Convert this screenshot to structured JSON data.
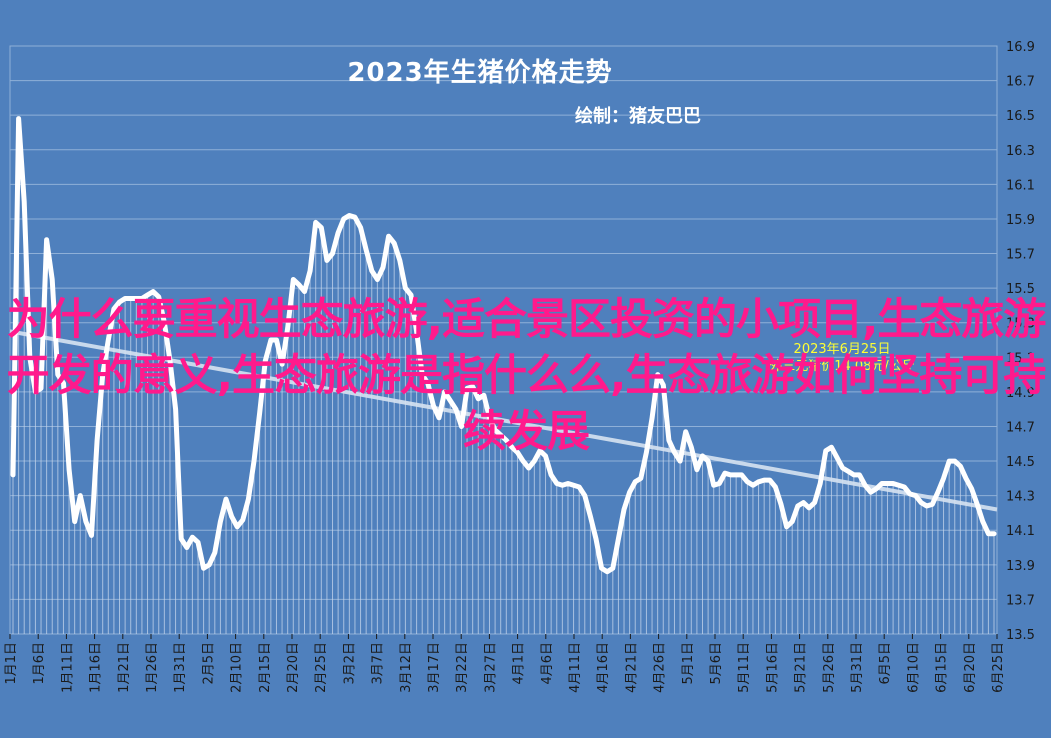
{
  "title": "2023年生猪价格走势",
  "subtitle": "绘制：猪友巴巴",
  "annotation": [
    "2023年6月25日",
    "外三元猪价14.08元/公斤"
  ],
  "overlay_text": "为什么要重视生态旅游,适合景区投资的小项目,生态旅游开发的意义,生态旅游是指什么么,生态旅游如何坚持可持续发展",
  "colors": {
    "background": "#4f80bd",
    "plot_border": "#8fb0d8",
    "grid": "#8fb0d8",
    "line": "#ffffff",
    "bars": "#c5d6ec",
    "trend": "#d6e2f1",
    "axis_text": "#1a1a1a",
    "annotation": "#ffff33",
    "overlay": "#ff1a8c"
  },
  "chart_data": {
    "type": "line",
    "title": "2023年生猪价格走势",
    "ylim": [
      13.5,
      16.9
    ],
    "yticks": [
      "16.9",
      "16.7",
      "16.5",
      "16.3",
      "16.1",
      "15.9",
      "15.7",
      "15.5",
      "15.3",
      "15.1",
      "14.9",
      "14.7",
      "14.5",
      "14.3",
      "14.1",
      "13.9",
      "13.7",
      "13.5"
    ],
    "xticks": [
      "1月1日",
      "1月6日",
      "1月11日",
      "1月16日",
      "1月21日",
      "1月26日",
      "1月31日",
      "2月5日",
      "2月10日",
      "2月15日",
      "2月20日",
      "2月25日",
      "3月2日",
      "3月7日",
      "3月12日",
      "3月17日",
      "3月22日",
      "3月27日",
      "4月1日",
      "4月6日",
      "4月11日",
      "4月16日",
      "4月21日",
      "4月26日",
      "5月1日",
      "5月6日",
      "5月11日",
      "5月16日",
      "5月21日",
      "5月26日",
      "5月31日",
      "6月5日",
      "6月10日",
      "6月15日",
      "6月20日",
      "6月25日"
    ],
    "grid": true,
    "legend": "none",
    "series": [
      {
        "values": [
          14.42,
          16.48,
          16.0,
          15.1,
          14.9,
          14.92,
          15.78,
          15.55,
          15.0,
          14.95,
          14.45,
          14.15,
          14.3,
          14.15,
          14.07,
          14.62,
          15.0,
          15.2,
          15.38,
          15.42,
          15.44,
          15.44,
          15.44,
          15.44,
          15.46,
          15.48,
          15.45,
          15.3,
          15.08,
          14.8,
          14.05,
          14.0,
          14.06,
          14.03,
          13.88,
          13.9,
          13.97,
          14.15,
          14.28,
          14.18,
          14.12,
          14.16,
          14.28,
          14.5,
          14.78,
          15.08,
          15.2,
          15.2,
          15.06,
          15.27,
          15.55,
          15.52,
          15.48,
          15.6,
          15.88,
          15.85,
          15.66,
          15.7,
          15.82,
          15.9,
          15.92,
          15.91,
          15.85,
          15.72,
          15.6,
          15.55,
          15.62,
          15.8,
          15.76,
          15.66,
          15.5,
          15.46,
          15.25,
          15.0,
          14.95,
          14.82,
          14.75,
          14.9,
          14.85,
          14.8,
          14.7,
          14.92,
          14.93,
          14.86,
          14.88,
          14.75,
          14.68,
          14.65,
          14.62,
          14.58,
          14.55,
          14.5,
          14.46,
          14.5,
          14.56,
          14.53,
          14.42,
          14.37,
          14.36,
          14.37,
          14.36,
          14.35,
          14.3,
          14.18,
          14.05,
          13.88,
          13.86,
          13.88,
          14.05,
          14.22,
          14.32,
          14.38,
          14.4,
          14.55,
          14.75,
          15.0,
          14.94,
          14.62,
          14.55,
          14.5,
          14.67,
          14.58,
          14.45,
          14.53,
          14.5,
          14.36,
          14.37,
          14.43,
          14.42,
          14.42,
          14.42,
          14.38,
          14.36,
          14.38,
          14.39,
          14.39,
          14.35,
          14.25,
          14.12,
          14.15,
          14.24,
          14.26,
          14.23,
          14.26,
          14.37,
          14.56,
          14.58,
          14.52,
          14.46,
          14.44,
          14.42,
          14.42,
          14.36,
          14.32,
          14.34,
          14.37,
          14.37,
          14.37,
          14.36,
          14.35,
          14.31,
          14.3,
          14.26,
          14.24,
          14.25,
          14.32,
          14.4,
          14.5,
          14.5,
          14.47,
          14.4,
          14.34,
          14.25,
          14.15,
          14.08,
          14.08
        ]
      }
    ],
    "trendline": [
      15.25,
      14.22
    ]
  }
}
